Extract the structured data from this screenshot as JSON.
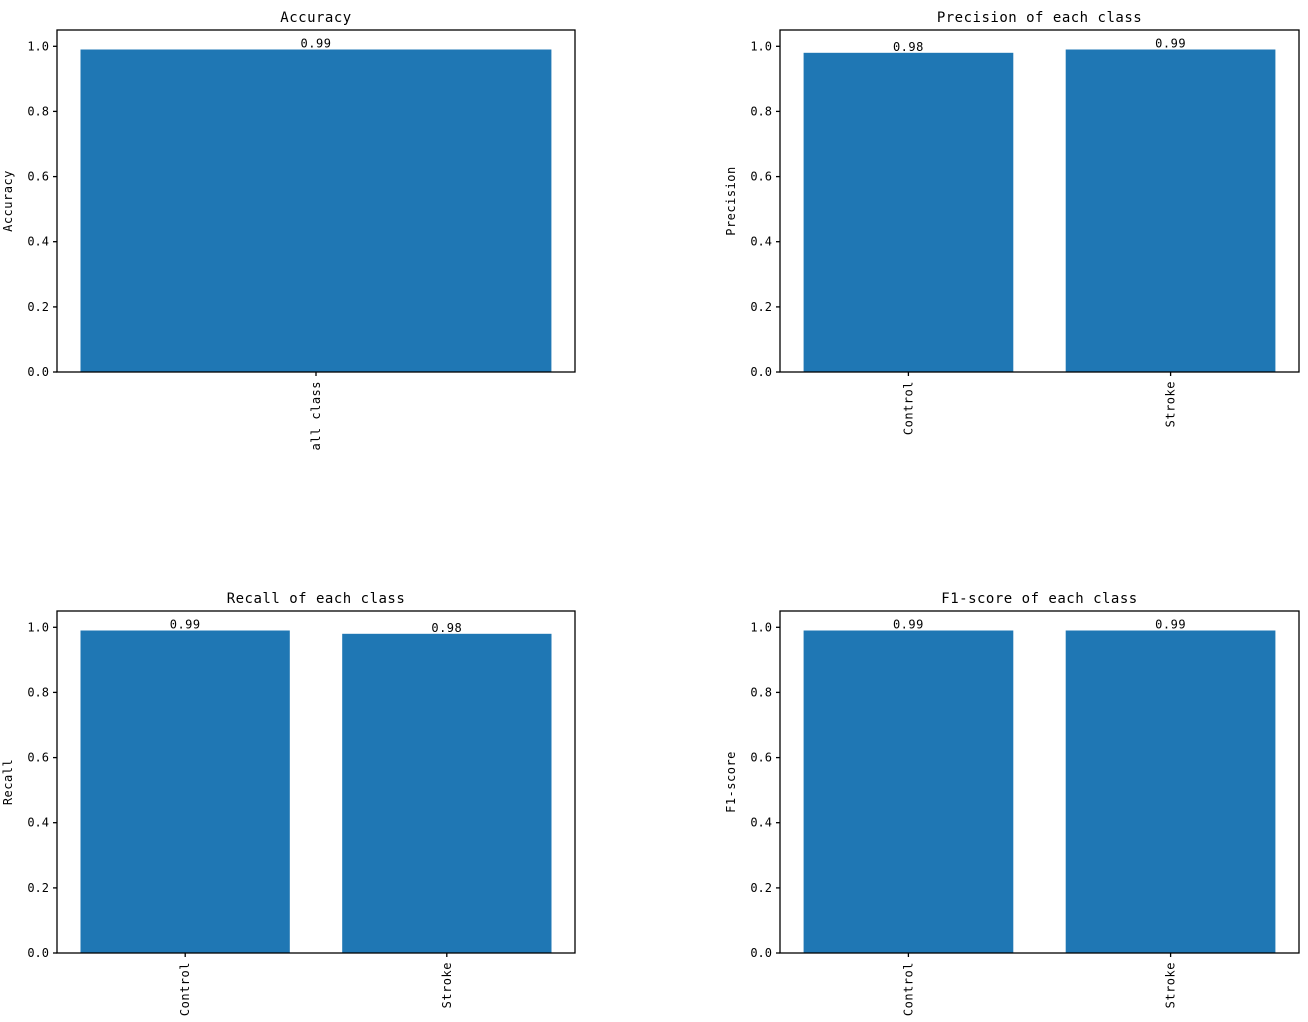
{
  "figure": {
    "title": "",
    "background_color": "#ffffff",
    "bar_color": "#1f77b4",
    "axis_color": "#000000",
    "text_color": "#000000"
  },
  "chart_data": [
    {
      "type": "bar",
      "title": "Accuracy",
      "xlabel": "",
      "ylabel": "Accuracy",
      "categories": [
        "all class"
      ],
      "values": [
        0.99
      ],
      "value_labels": [
        "0.99"
      ],
      "yticks": [
        0.0,
        0.2,
        0.4,
        0.6,
        0.8,
        1.0
      ],
      "ytick_labels": [
        "0.0",
        "0.2",
        "0.4",
        "0.6",
        "0.8",
        "1.0"
      ],
      "ylim": [
        0,
        1.05
      ],
      "grid": false,
      "legend_position": "none",
      "xtick_rotation": 90
    },
    {
      "type": "bar",
      "title": "Precision of each class",
      "xlabel": "",
      "ylabel": "Precision",
      "categories": [
        "Control",
        "Stroke"
      ],
      "values": [
        0.98,
        0.99
      ],
      "value_labels": [
        "0.98",
        "0.99"
      ],
      "yticks": [
        0.0,
        0.2,
        0.4,
        0.6,
        0.8,
        1.0
      ],
      "ytick_labels": [
        "0.0",
        "0.2",
        "0.4",
        "0.6",
        "0.8",
        "1.0"
      ],
      "ylim": [
        0,
        1.05
      ],
      "grid": false,
      "legend_position": "none",
      "xtick_rotation": 90
    },
    {
      "type": "bar",
      "title": "Recall of each class",
      "xlabel": "",
      "ylabel": "Recall",
      "categories": [
        "Control",
        "Stroke"
      ],
      "values": [
        0.99,
        0.98
      ],
      "value_labels": [
        "0.99",
        "0.98"
      ],
      "yticks": [
        0.0,
        0.2,
        0.4,
        0.6,
        0.8,
        1.0
      ],
      "ytick_labels": [
        "0.0",
        "0.2",
        "0.4",
        "0.6",
        "0.8",
        "1.0"
      ],
      "ylim": [
        0,
        1.05
      ],
      "grid": false,
      "legend_position": "none",
      "xtick_rotation": 90
    },
    {
      "type": "bar",
      "title": "F1-score of each class",
      "xlabel": "",
      "ylabel": "F1-score",
      "categories": [
        "Control",
        "Stroke"
      ],
      "values": [
        0.99,
        0.99
      ],
      "value_labels": [
        "0.99",
        "0.99"
      ],
      "yticks": [
        0.0,
        0.2,
        0.4,
        0.6,
        0.8,
        1.0
      ],
      "ytick_labels": [
        "0.0",
        "0.2",
        "0.4",
        "0.6",
        "0.8",
        "1.0"
      ],
      "ylim": [
        0,
        1.05
      ],
      "grid": false,
      "legend_position": "none",
      "xtick_rotation": 90
    }
  ]
}
